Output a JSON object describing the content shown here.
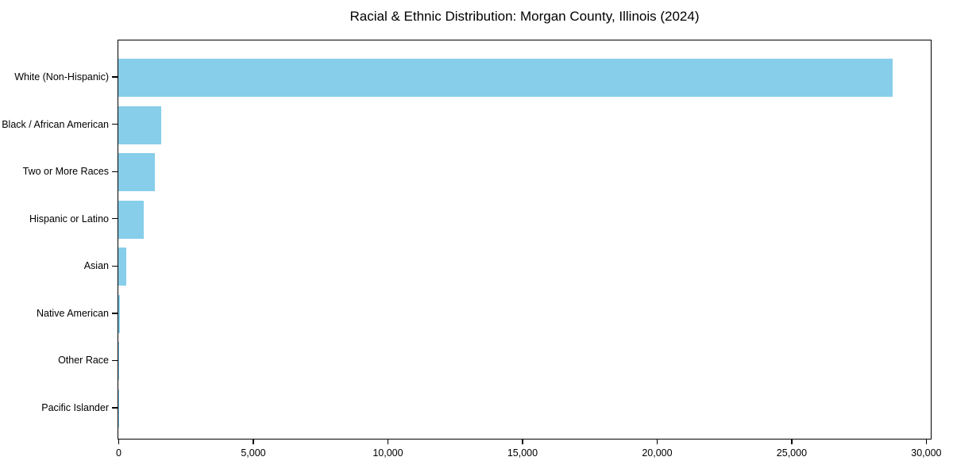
{
  "page": {
    "background_color": "#ffffff"
  },
  "chart_data": {
    "type": "bar",
    "orientation": "horizontal",
    "title": "Racial & Ethnic Distribution: Morgan County, Illinois (2024)",
    "xlabel": "",
    "ylabel": "",
    "categories": [
      "White (Non-Hispanic)",
      "Black / African American",
      "Two or More Races",
      "Hispanic or Latino",
      "Asian",
      "Native American",
      "Other Race",
      "Pacific Islander"
    ],
    "values": [
      28750,
      1590,
      1370,
      950,
      290,
      60,
      12,
      5
    ],
    "x_ticks": [
      0,
      5000,
      10000,
      15000,
      20000,
      25000,
      30000
    ],
    "x_tick_labels": [
      "0",
      "5,000",
      "10,000",
      "15,000",
      "20,000",
      "25,000",
      "30,000"
    ],
    "xlim": [
      0,
      30150
    ],
    "grid": false,
    "legend": null,
    "bar_color": "#87CEEB",
    "axis_color": "#000000",
    "text_color": "#000000"
  }
}
